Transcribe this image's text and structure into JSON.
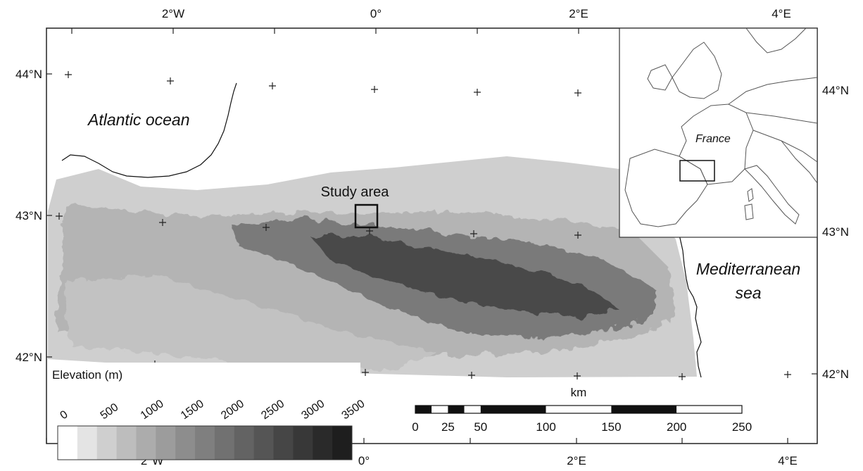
{
  "graticule": {
    "top_lon_labels": [
      "2°W",
      "0°",
      "2°E",
      "4°E"
    ],
    "bottom_lon_labels": [
      "2°W",
      "0°",
      "2°E",
      "4°E"
    ],
    "left_lat_labels": [
      "44°N",
      "43°N",
      "42°N"
    ],
    "right_lat_labels": [
      "44°N",
      "43°N",
      "42°N"
    ]
  },
  "places": {
    "atlantic": "Atlantic ocean",
    "mediterranean_line1": "Mediterranean",
    "mediterranean_line2": "sea",
    "study_area": "Study area",
    "inset_country": "France"
  },
  "elevation_legend": {
    "title": "Elevation (m)",
    "labels": [
      "0",
      "500",
      "1000",
      "1500",
      "2000",
      "2500",
      "3000",
      "3500"
    ],
    "colors": [
      "#ffffff",
      "#e4e4e4",
      "#cfcfcf",
      "#bdbdbd",
      "#acacac",
      "#9c9c9c",
      "#8d8d8d",
      "#7f7f7f",
      "#717171",
      "#636363",
      "#555555",
      "#464646",
      "#383838",
      "#2a2a2a",
      "#1e1e1e"
    ]
  },
  "scale_bar": {
    "unit": "km",
    "labels": [
      "0",
      "25",
      "50",
      "100",
      "150",
      "200",
      "250"
    ]
  }
}
